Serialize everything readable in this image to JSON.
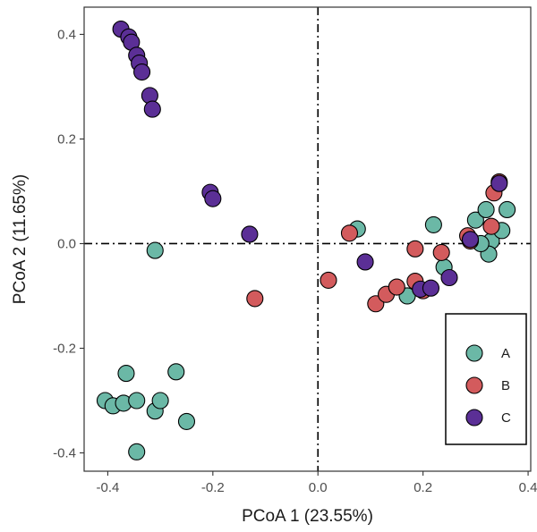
{
  "chart_data": {
    "type": "scatter",
    "title": "",
    "xlabel": "PCoA 1 (23.55%)",
    "ylabel": "PCoA 2 (11.65%)",
    "xlim": [
      -0.445,
      0.405
    ],
    "ylim": [
      -0.435,
      0.452
    ],
    "x_ticks": [
      -0.4,
      -0.2,
      0.0,
      0.2,
      0.4
    ],
    "x_tick_labels": [
      "-0.4",
      "-0.2",
      "0.0",
      "0.2",
      "0.4"
    ],
    "y_ticks": [
      -0.4,
      -0.2,
      0.0,
      0.2,
      0.4
    ],
    "y_tick_labels": [
      "-0.4",
      "-0.2",
      "0.0",
      "0.2",
      "0.4"
    ],
    "grid": false,
    "reference_lines": {
      "x": 0.0,
      "y": 0.0,
      "style": "dash-dot"
    },
    "legend_position": "bottom-right",
    "series": [
      {
        "name": "A",
        "color": "#6bb8a6",
        "points": [
          [
            -0.405,
            -0.3
          ],
          [
            -0.39,
            -0.31
          ],
          [
            -0.37,
            -0.305
          ],
          [
            -0.345,
            -0.3
          ],
          [
            -0.31,
            -0.32
          ],
          [
            -0.3,
            -0.3
          ],
          [
            -0.25,
            -0.34
          ],
          [
            -0.27,
            -0.245
          ],
          [
            -0.365,
            -0.248
          ],
          [
            -0.345,
            -0.398
          ],
          [
            -0.31,
            -0.013
          ],
          [
            0.075,
            0.028
          ],
          [
            0.17,
            -0.1
          ],
          [
            0.22,
            0.036
          ],
          [
            0.24,
            -0.045
          ],
          [
            0.3,
            0.045
          ],
          [
            0.32,
            0.065
          ],
          [
            0.33,
            0.005
          ],
          [
            0.325,
            -0.02
          ],
          [
            0.35,
            0.025
          ],
          [
            0.36,
            0.065
          ],
          [
            0.31,
            0.0
          ]
        ]
      },
      {
        "name": "B",
        "color": "#d35b5d",
        "points": [
          [
            -0.12,
            -0.105
          ],
          [
            0.02,
            -0.07
          ],
          [
            0.06,
            0.02
          ],
          [
            0.11,
            -0.115
          ],
          [
            0.13,
            -0.097
          ],
          [
            0.15,
            -0.083
          ],
          [
            0.185,
            -0.072
          ],
          [
            0.2,
            -0.09
          ],
          [
            0.185,
            -0.01
          ],
          [
            0.235,
            -0.017
          ],
          [
            0.285,
            0.015
          ],
          [
            0.29,
            0.005
          ],
          [
            0.33,
            0.033
          ],
          [
            0.335,
            0.097
          ],
          [
            0.345,
            0.118
          ]
        ]
      },
      {
        "name": "C",
        "color": "#5b2f96",
        "points": [
          [
            -0.375,
            0.41
          ],
          [
            -0.36,
            0.395
          ],
          [
            -0.355,
            0.385
          ],
          [
            -0.345,
            0.36
          ],
          [
            -0.34,
            0.345
          ],
          [
            -0.335,
            0.328
          ],
          [
            -0.32,
            0.283
          ],
          [
            -0.315,
            0.257
          ],
          [
            -0.205,
            0.098
          ],
          [
            -0.2,
            0.086
          ],
          [
            -0.13,
            0.018
          ],
          [
            0.09,
            -0.035
          ],
          [
            0.195,
            -0.087
          ],
          [
            0.215,
            -0.085
          ],
          [
            0.25,
            -0.065
          ],
          [
            0.29,
            0.008
          ],
          [
            0.345,
            0.115
          ]
        ]
      }
    ]
  }
}
